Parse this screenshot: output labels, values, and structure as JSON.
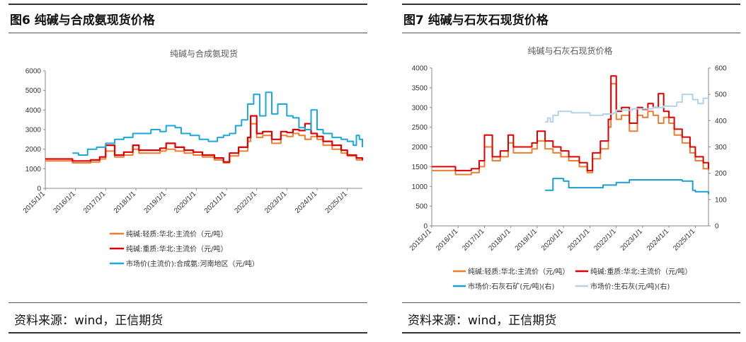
{
  "left": {
    "figure_label": "图6 纯碱与合成氨现货价格",
    "source": "资料来源：wind，正信期货"
  },
  "right": {
    "figure_label": "图7 纯碱与石灰石现货价格",
    "source": "资料来源：wind，正信期货"
  },
  "colors": {
    "light_soda": "#ED7D31",
    "heavy_soda": "#E00000",
    "ammonia": "#19A9DE",
    "limestone": "#1A9FD0",
    "quicklime": "#B4D3EA"
  },
  "chart_data": [
    {
      "type": "line",
      "title": "纯碱与合成氨现货",
      "x_ticks": [
        "2015/1/1",
        "2016/1/1",
        "2017/1/1",
        "2018/1/1",
        "2019/1/1",
        "2020/1/1",
        "2021/1/1",
        "2022/1/1",
        "2023/1/1",
        "2024/1/1",
        "2025/1/1"
      ],
      "xlim": [
        2015.0,
        2025.5
      ],
      "ylim": [
        0,
        6000
      ],
      "y_ticks": [
        0,
        1000,
        2000,
        3000,
        4000,
        5000,
        6000
      ],
      "grid": false,
      "legend_position": "bottom",
      "series": [
        {
          "name": "纯碱:轻质:华北:主流价（元/吨）",
          "color": "#ED7D31",
          "x": [
            2015.0,
            2015.6,
            2015.9,
            2016.2,
            2016.5,
            2016.8,
            2017.0,
            2017.3,
            2017.6,
            2017.9,
            2018.1,
            2018.5,
            2018.8,
            2019.0,
            2019.3,
            2019.6,
            2019.9,
            2020.2,
            2020.6,
            2020.9,
            2021.1,
            2021.4,
            2021.7,
            2021.8,
            2022.0,
            2022.2,
            2022.5,
            2022.8,
            2023.0,
            2023.2,
            2023.4,
            2023.6,
            2023.8,
            2024.0,
            2024.2,
            2024.5,
            2024.8,
            2025.0,
            2025.3,
            2025.5
          ],
          "y": [
            1400,
            1400,
            1300,
            1300,
            1350,
            1500,
            1900,
            1600,
            1700,
            2000,
            1800,
            1800,
            1900,
            2000,
            1900,
            1800,
            1700,
            1600,
            1450,
            1300,
            1650,
            1900,
            2400,
            3300,
            2600,
            2700,
            2300,
            2700,
            2650,
            2800,
            2700,
            2500,
            2650,
            2500,
            2200,
            2000,
            1800,
            1650,
            1450,
            1400
          ]
        },
        {
          "name": "纯碱:重质:华北:主流价（元/吨）",
          "color": "#E00000",
          "x": [
            2015.0,
            2015.6,
            2015.9,
            2016.2,
            2016.5,
            2016.8,
            2017.0,
            2017.3,
            2017.6,
            2017.9,
            2018.1,
            2018.5,
            2018.8,
            2019.0,
            2019.3,
            2019.6,
            2019.9,
            2020.2,
            2020.6,
            2020.9,
            2021.1,
            2021.4,
            2021.7,
            2021.8,
            2022.0,
            2022.2,
            2022.5,
            2022.8,
            2023.0,
            2023.2,
            2023.4,
            2023.6,
            2023.8,
            2024.0,
            2024.2,
            2024.5,
            2024.8,
            2025.0,
            2025.3,
            2025.5
          ],
          "y": [
            1500,
            1500,
            1400,
            1400,
            1450,
            1600,
            2200,
            1700,
            1850,
            2200,
            1950,
            1950,
            2050,
            2300,
            2100,
            1950,
            1850,
            1700,
            1550,
            1350,
            1800,
            2100,
            2600,
            3700,
            2800,
            2900,
            2500,
            2900,
            2850,
            3000,
            2950,
            3300,
            2800,
            2650,
            2400,
            2200,
            1950,
            1700,
            1550,
            1450
          ]
        },
        {
          "name": "市场价(主流价):合成氨:河南地区（元/吨）",
          "color": "#19A9DE",
          "x": [
            2015.9,
            2016.1,
            2016.4,
            2016.7,
            2017.0,
            2017.3,
            2017.6,
            2017.9,
            2018.2,
            2018.5,
            2018.8,
            2019.0,
            2019.3,
            2019.5,
            2019.8,
            2020.1,
            2020.4,
            2020.7,
            2020.9,
            2021.1,
            2021.3,
            2021.5,
            2021.7,
            2021.9,
            2022.1,
            2022.3,
            2022.5,
            2022.7,
            2023.0,
            2023.2,
            2023.4,
            2023.6,
            2023.8,
            2024.0,
            2024.2,
            2024.5,
            2024.8,
            2025.0,
            2025.2,
            2025.3,
            2025.4,
            2025.5
          ],
          "y": [
            1800,
            1700,
            2000,
            2100,
            2300,
            2500,
            2600,
            2800,
            2800,
            3000,
            2900,
            3200,
            3100,
            2800,
            2700,
            2500,
            2400,
            2600,
            2700,
            2800,
            3200,
            3500,
            4300,
            4800,
            3700,
            4900,
            3800,
            4300,
            3700,
            3600,
            3100,
            3000,
            4000,
            3000,
            2800,
            2600,
            2500,
            2400,
            2200,
            2700,
            2500,
            2100
          ]
        }
      ]
    },
    {
      "type": "line",
      "title": "纯碱与石灰石现货价格",
      "x_ticks": [
        "2015/1/1",
        "2016/1/1",
        "2017/1/1",
        "2018/1/1",
        "2019/1/1",
        "2020/1/1",
        "2021/1/1",
        "2022/1/1",
        "2023/1/1",
        "2024/1/1",
        "2025/1/1"
      ],
      "xlim": [
        2015.0,
        2025.5
      ],
      "ylim_left": [
        0,
        4000
      ],
      "y_ticks_left": [
        0,
        500,
        1000,
        1500,
        2000,
        2500,
        3000,
        3500,
        4000
      ],
      "ylim_right": [
        0,
        600
      ],
      "y_ticks_right": [
        0,
        100,
        200,
        300,
        400,
        500,
        600
      ],
      "grid": false,
      "legend_position": "bottom",
      "series": [
        {
          "name": "纯碱:轻质:华北:主流价（元/吨）",
          "color": "#ED7D31",
          "axis": "left",
          "x": [
            2015.0,
            2015.6,
            2015.9,
            2016.2,
            2016.5,
            2016.8,
            2017.0,
            2017.3,
            2017.6,
            2017.9,
            2018.1,
            2018.5,
            2018.8,
            2019.0,
            2019.3,
            2019.6,
            2019.9,
            2020.2,
            2020.6,
            2020.9,
            2021.1,
            2021.4,
            2021.7,
            2021.8,
            2022.0,
            2022.2,
            2022.5,
            2022.8,
            2023.0,
            2023.2,
            2023.4,
            2023.6,
            2023.8,
            2024.0,
            2024.2,
            2024.5,
            2024.8,
            2025.0,
            2025.3,
            2025.5
          ],
          "y": [
            1400,
            1400,
            1300,
            1300,
            1350,
            1500,
            2000,
            1650,
            1750,
            2100,
            1850,
            1850,
            1950,
            2150,
            1950,
            1850,
            1750,
            1650,
            1500,
            1350,
            1700,
            1950,
            2500,
            3600,
            2700,
            2800,
            2400,
            2800,
            2750,
            2900,
            2800,
            2600,
            2750,
            2600,
            2300,
            2100,
            1850,
            1650,
            1450,
            1400
          ]
        },
        {
          "name": "纯碱:重质:华北:主流价（元/吨）",
          "color": "#E00000",
          "axis": "left",
          "x": [
            2015.0,
            2015.6,
            2015.9,
            2016.2,
            2016.5,
            2016.8,
            2017.0,
            2017.3,
            2017.6,
            2017.9,
            2018.1,
            2018.5,
            2018.8,
            2019.0,
            2019.3,
            2019.6,
            2019.9,
            2020.2,
            2020.6,
            2020.9,
            2021.1,
            2021.4,
            2021.7,
            2021.8,
            2022.0,
            2022.2,
            2022.5,
            2022.8,
            2023.0,
            2023.2,
            2023.4,
            2023.6,
            2023.8,
            2024.0,
            2024.2,
            2024.5,
            2024.8,
            2025.0,
            2025.3,
            2025.5
          ],
          "y": [
            1500,
            1500,
            1400,
            1400,
            1450,
            1650,
            2300,
            1750,
            1900,
            2300,
            2000,
            2000,
            2100,
            2400,
            2150,
            2000,
            1900,
            1750,
            1600,
            1400,
            1850,
            2150,
            2700,
            3800,
            2900,
            3000,
            2600,
            3000,
            2950,
            3100,
            3000,
            3350,
            2900,
            2750,
            2450,
            2250,
            2000,
            1750,
            1600,
            1450
          ]
        },
        {
          "name": "市场价:石灰石矿(元/吨)(右)",
          "color": "#1A9FD0",
          "axis": "right",
          "x": [
            2019.3,
            2019.5,
            2019.6,
            2019.9,
            2020.0,
            2020.2,
            2021.0,
            2021.5,
            2022.0,
            2022.5,
            2023.0,
            2023.5,
            2024.0,
            2024.5,
            2024.6,
            2024.9,
            2025.0,
            2025.3,
            2025.5
          ],
          "y": [
            135,
            135,
            180,
            180,
            170,
            145,
            145,
            155,
            165,
            175,
            175,
            175,
            175,
            170,
            170,
            135,
            130,
            130,
            120
          ]
        },
        {
          "name": "市场价:生石灰(元/吨)(右)",
          "color": "#B4D3EA",
          "axis": "right",
          "x": [
            2019.3,
            2019.4,
            2019.5,
            2019.6,
            2019.8,
            2020.0,
            2020.3,
            2021.0,
            2021.5,
            2021.9,
            2022.0,
            2022.3,
            2022.6,
            2023.0,
            2023.4,
            2023.8,
            2024.0,
            2024.3,
            2024.5,
            2024.7,
            2024.9,
            2025.0,
            2025.1,
            2025.2,
            2025.3,
            2025.5
          ],
          "y": [
            395,
            410,
            395,
            420,
            435,
            435,
            430,
            420,
            425,
            430,
            440,
            440,
            445,
            445,
            450,
            455,
            455,
            470,
            500,
            500,
            480,
            480,
            465,
            465,
            485,
            470
          ]
        }
      ]
    }
  ]
}
